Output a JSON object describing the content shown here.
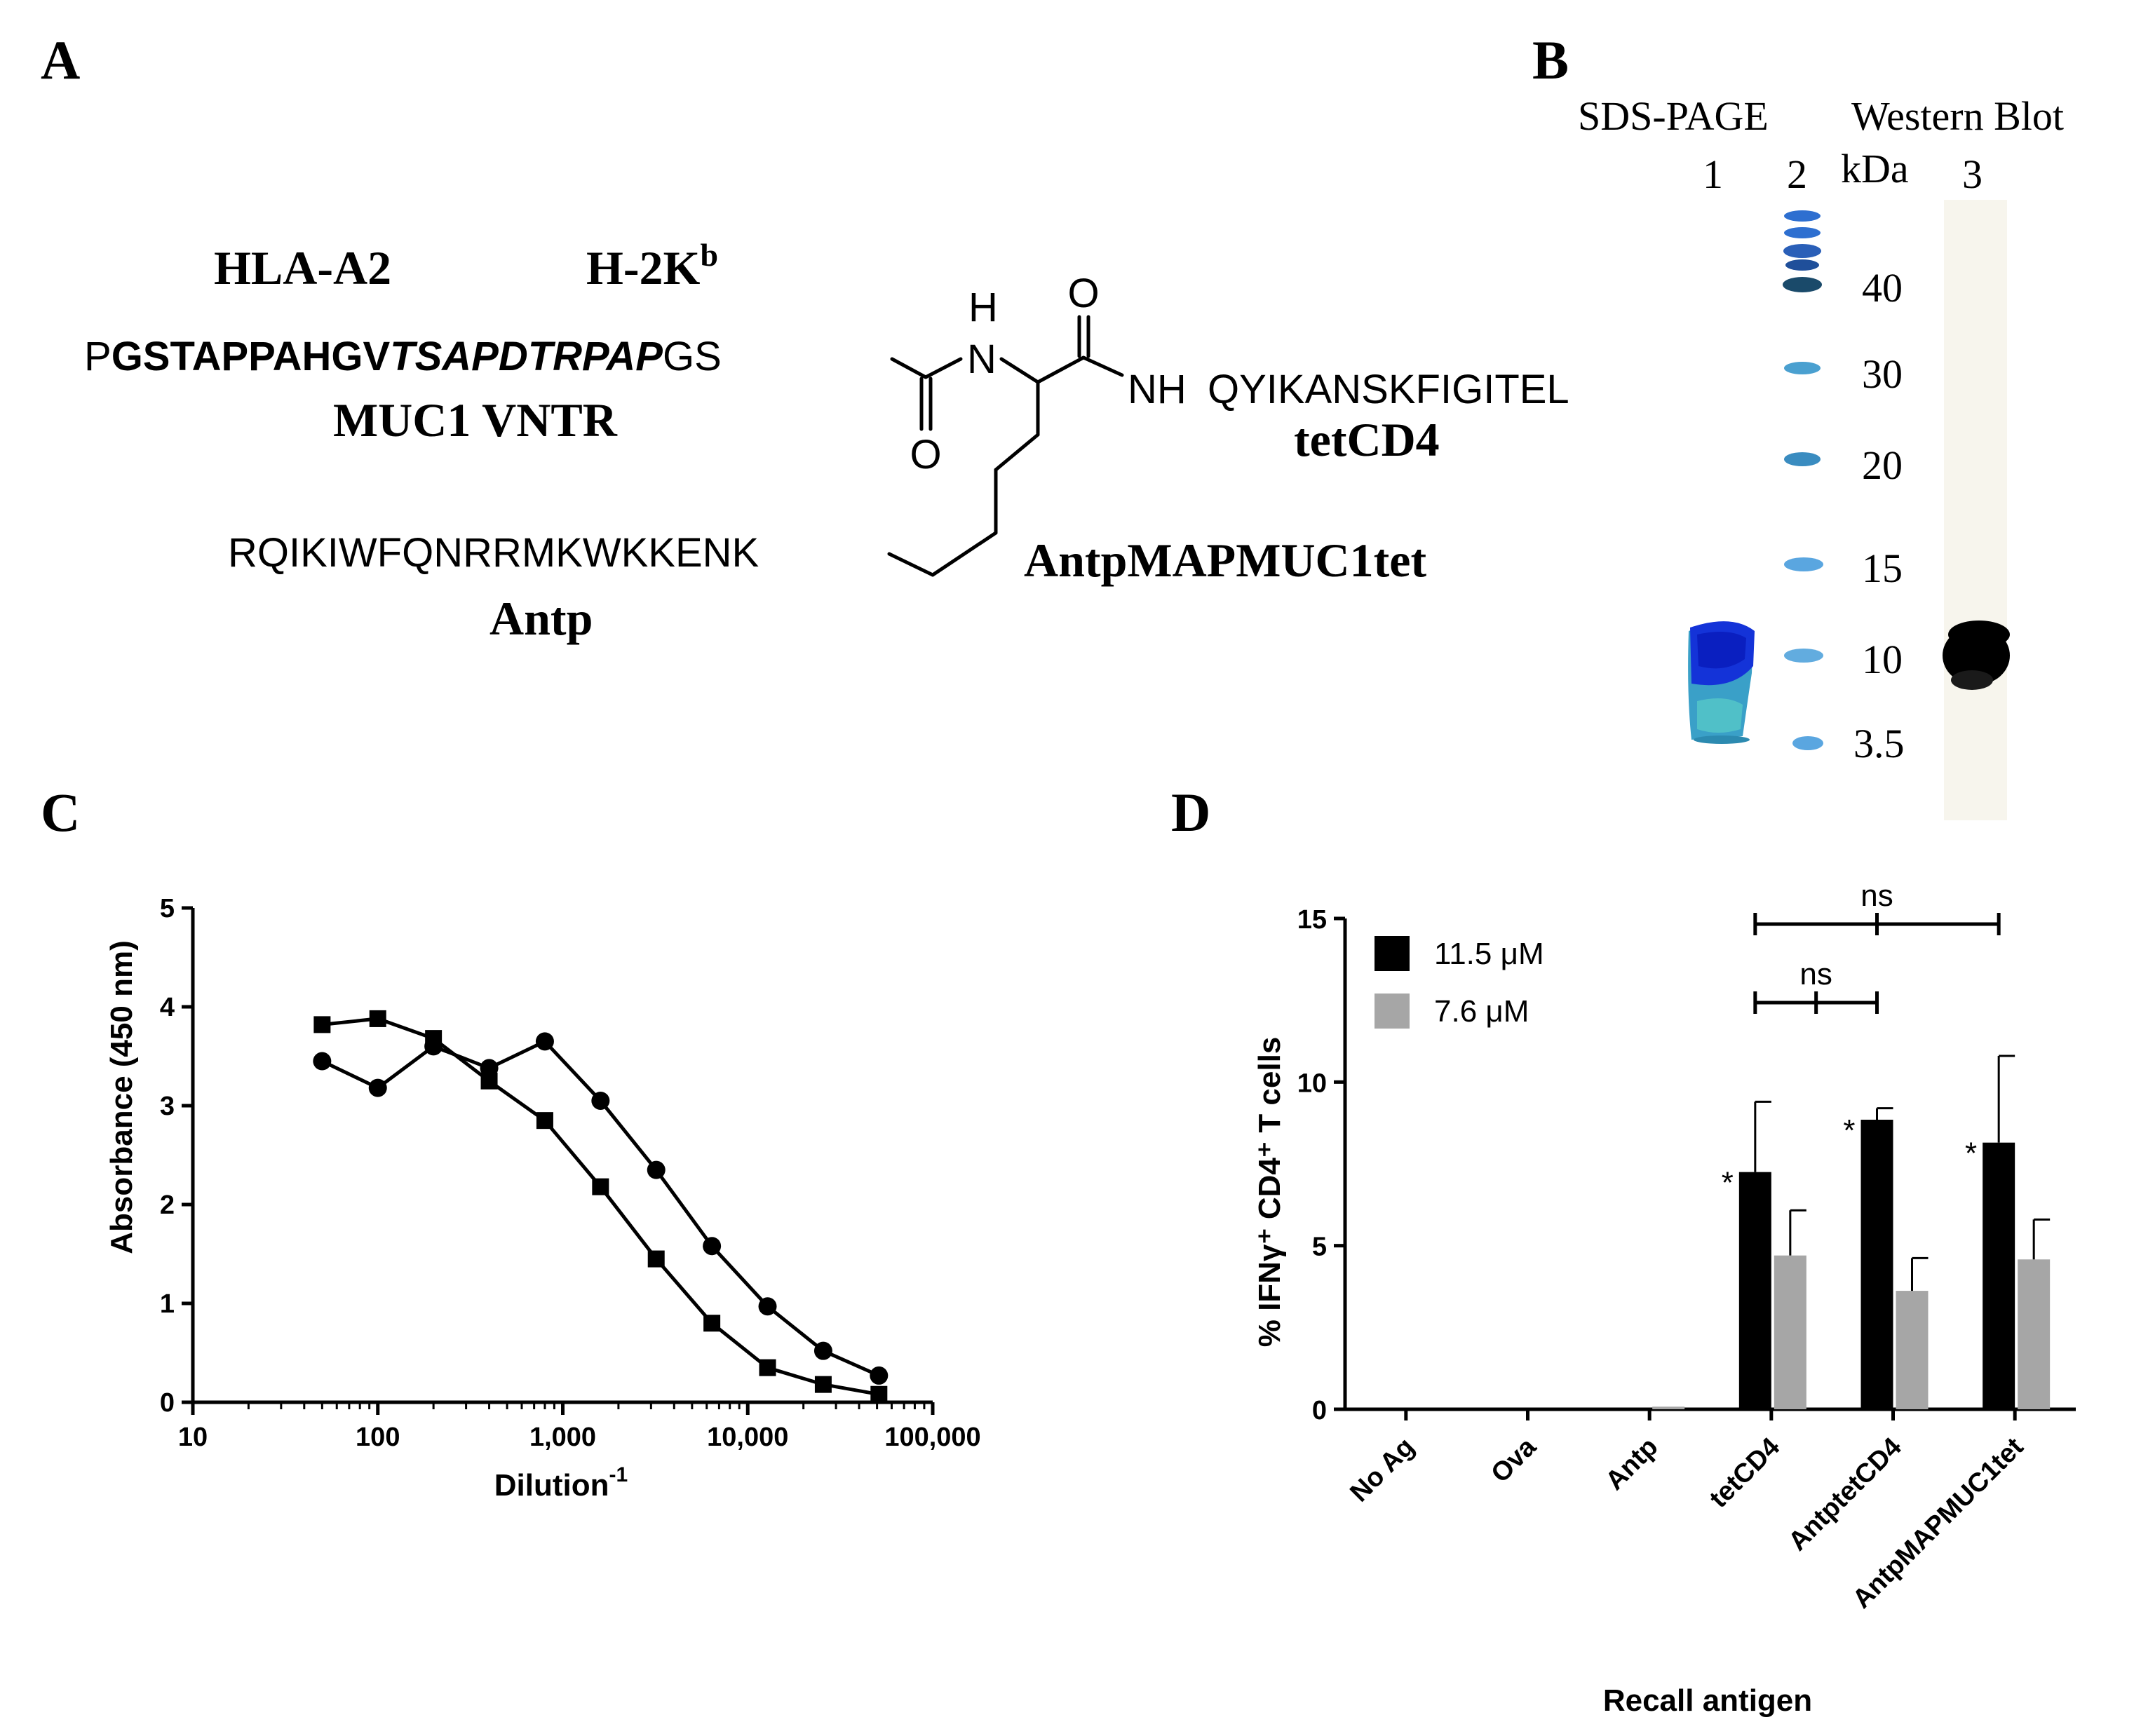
{
  "panels": {
    "a": {
      "letter": "A",
      "hla": "HLA-A2",
      "h2k": "H-2K",
      "h2k_sup": "b",
      "seq_p": "P",
      "seq_bold": "GSTAPPAHGV",
      "seq_italic": "TSAPDTRPAP",
      "seq_gs": "GS",
      "muc1_label": "MUC1 VNTR",
      "atom_h": "H",
      "atom_n": "N",
      "atom_o1": "O",
      "atom_o2": "O",
      "nh": "NH",
      "tet_seq": "QYIKANSKFIGITEL",
      "tet_label": "tetCD4",
      "antp_seq": "RQIKIWFQNRRMKWKKENK",
      "antp_label": "Antp",
      "construct_label": "AntpMAPMUC1tet"
    },
    "b": {
      "letter": "B",
      "sds_label": "SDS-PAGE",
      "wb_label": "Western Blot",
      "lane1": "1",
      "lane2": "2",
      "kda": "kDa",
      "lane3": "3",
      "markers": [
        "40",
        "30",
        "20",
        "15",
        "10",
        "3.5"
      ],
      "colors": {
        "lane_blue": "#1a3fd0",
        "lane_teal": "#3aa7c4",
        "marker_blue": "#4a90d8",
        "marker_dark": "#1e4a80",
        "blot": "#000000"
      }
    },
    "c": {
      "letter": "C"
    },
    "d": {
      "letter": "D"
    }
  },
  "chart_data": [
    {
      "type": "line",
      "panel": "C",
      "xlabel": "Dilution",
      "xlabel_sup": "-1",
      "ylabel": "Absorbance (450 nm)",
      "xscale": "log",
      "xlim": [
        10,
        100000
      ],
      "ylim": [
        0,
        5
      ],
      "xticks": [
        10,
        100,
        1000,
        10000,
        100000
      ],
      "xtick_labels": [
        "10",
        "100",
        "1,000",
        "10,000",
        "100,000"
      ],
      "yticks": [
        0,
        1,
        2,
        3,
        4,
        5
      ],
      "ytick_labels": [
        "0",
        "1",
        "2",
        "3",
        "4",
        "5"
      ],
      "series": [
        {
          "marker": "circle",
          "x": [
            50,
            100,
            200,
            400,
            800,
            1600,
            3200,
            6400,
            12800,
            25600,
            51200
          ],
          "y": [
            3.45,
            3.18,
            3.6,
            3.38,
            3.65,
            3.05,
            2.35,
            1.58,
            0.97,
            0.52,
            0.27
          ]
        },
        {
          "marker": "square",
          "x": [
            50,
            100,
            200,
            400,
            800,
            1600,
            3200,
            6400,
            12800,
            25600,
            51200
          ],
          "y": [
            3.82,
            3.88,
            3.68,
            3.25,
            2.85,
            2.18,
            1.45,
            0.8,
            0.35,
            0.18,
            0.08
          ]
        }
      ]
    },
    {
      "type": "bar",
      "panel": "D",
      "xlabel": "Recall antigen",
      "ylabel": "% IFNγ⁺ CD4⁺ T cells",
      "ylim": [
        0,
        15
      ],
      "yticks": [
        0,
        5,
        10,
        15
      ],
      "ytick_labels": [
        "0",
        "5",
        "10",
        "15"
      ],
      "categories": [
        "No Ag",
        "Ova",
        "Antp",
        "tetCD4",
        "AntptetCD4",
        "AntpMAPMUC1tet"
      ],
      "series": [
        {
          "name": "11.5 μM",
          "color": "#000000",
          "values": [
            0,
            0,
            0,
            7.25,
            8.85,
            8.15
          ],
          "errors": [
            0,
            0,
            0,
            2.15,
            0.35,
            2.65
          ],
          "significance": [
            "",
            "",
            "",
            "*",
            "*",
            "*"
          ]
        },
        {
          "name": "7.6 μM",
          "color": "#a6a6a6",
          "values": [
            0,
            0,
            0.08,
            4.7,
            3.62,
            4.58
          ],
          "errors": [
            0,
            0,
            0,
            1.38,
            1.0,
            1.22
          ],
          "significance": [
            "",
            "",
            "",
            "*",
            "*",
            "*"
          ]
        }
      ],
      "comparisons": [
        {
          "from": "tetCD4",
          "to": "AntpMAPMUC1tet",
          "label": "ns"
        },
        {
          "from": "tetCD4",
          "to": "AntptetCD4",
          "label": "ns"
        }
      ]
    }
  ]
}
